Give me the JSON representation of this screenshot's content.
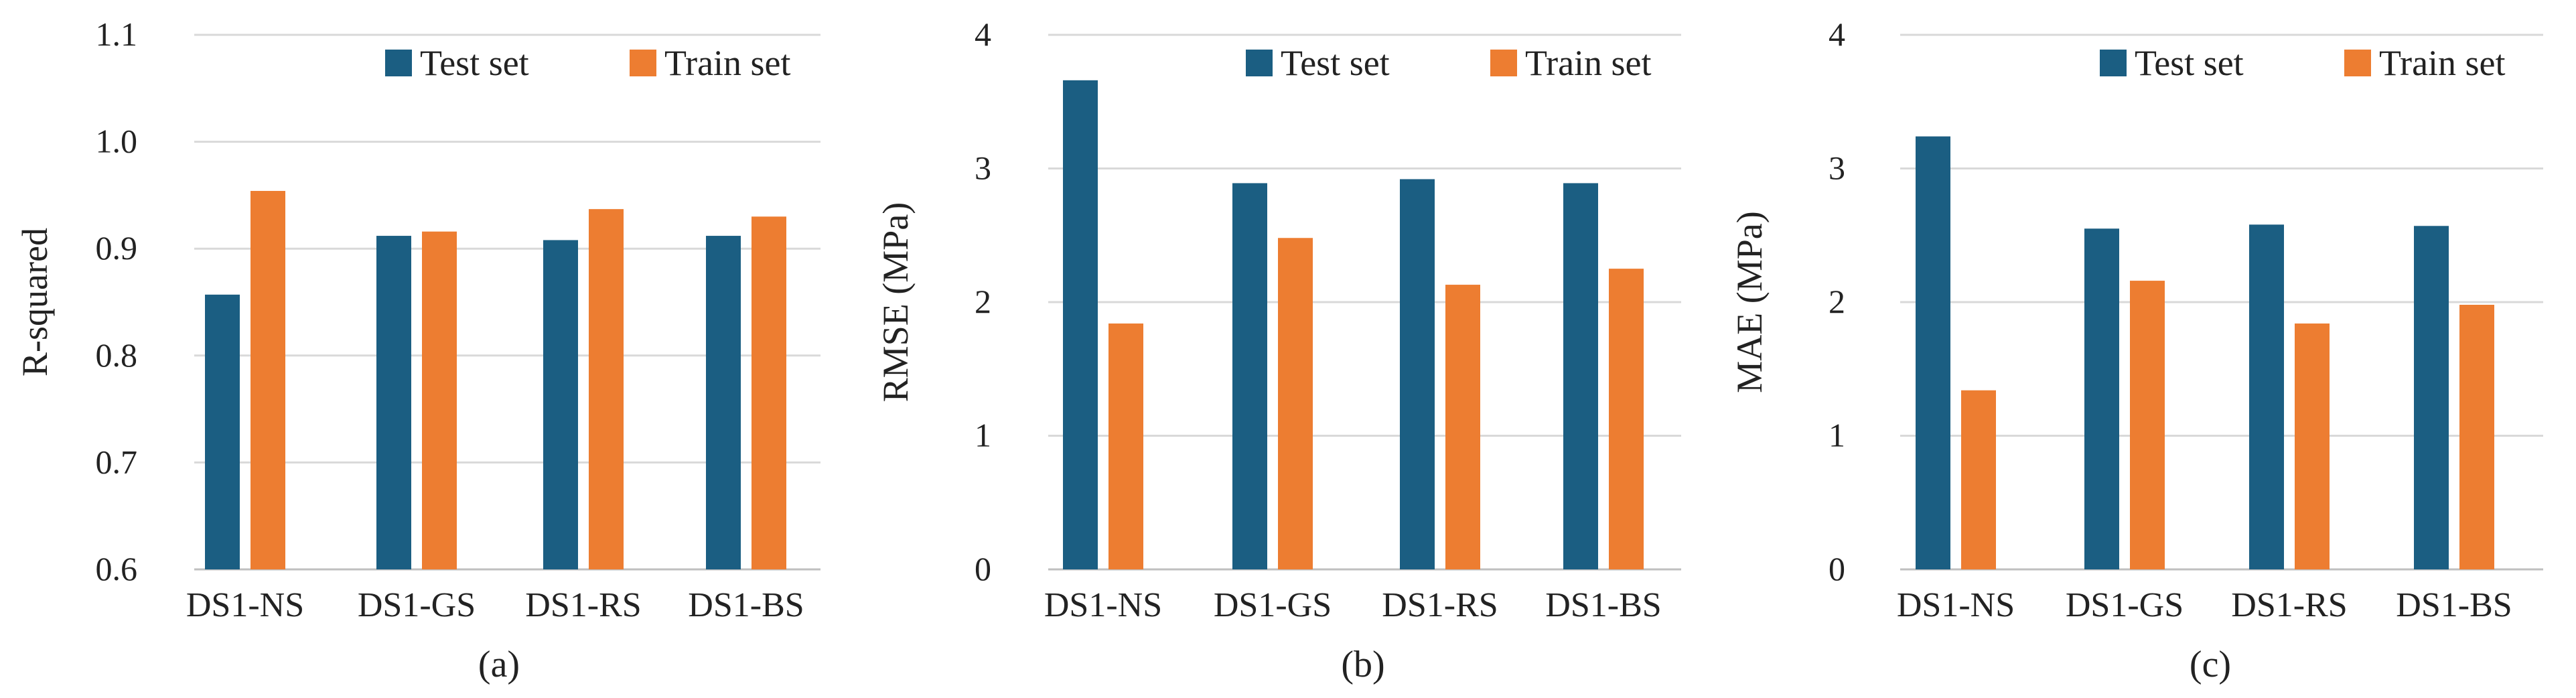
{
  "colors": {
    "test": "#1B5E82",
    "train": "#ED7D31",
    "grid": "#D9D9D9",
    "axis": "#BFBFBF",
    "text": "#222222"
  },
  "chart_data": [
    {
      "type": "bar",
      "panel_label": "(a)",
      "title": "",
      "xlabel": "",
      "ylabel": "R-squared",
      "ylim": [
        0.6,
        1.1
      ],
      "yticks": [
        "0.6",
        "0.7",
        "0.8",
        "0.9",
        "1.0",
        "1.1"
      ],
      "grid": true,
      "legend": "top-right",
      "categories": [
        "DS1-NS",
        "DS1-GS",
        "DS1-RS",
        "DS1-BS"
      ],
      "series": [
        {
          "name": "Test set",
          "values": [
            0.857,
            0.912,
            0.908,
            0.912
          ]
        },
        {
          "name": "Train set",
          "values": [
            0.954,
            0.916,
            0.937,
            0.93
          ]
        }
      ]
    },
    {
      "type": "bar",
      "panel_label": "(b)",
      "title": "",
      "xlabel": "",
      "ylabel": "RMSE (MPa)",
      "ylim": [
        0,
        4
      ],
      "yticks": [
        "0",
        "1",
        "2",
        "3",
        "4"
      ],
      "grid": true,
      "legend": "top-right",
      "categories": [
        "DS1-NS",
        "DS1-GS",
        "DS1-RS",
        "DS1-BS"
      ],
      "series": [
        {
          "name": "Test set",
          "values": [
            3.66,
            2.89,
            2.92,
            2.89
          ]
        },
        {
          "name": "Train set",
          "values": [
            1.84,
            2.48,
            2.13,
            2.25
          ]
        }
      ]
    },
    {
      "type": "bar",
      "panel_label": "(c)",
      "title": "",
      "xlabel": "",
      "ylabel": "MAE (MPa)",
      "ylim": [
        0,
        4
      ],
      "yticks": [
        "0",
        "1",
        "2",
        "3",
        "4"
      ],
      "grid": true,
      "legend": "top-right",
      "categories": [
        "DS1-NS",
        "DS1-GS",
        "DS1-RS",
        "DS1-BS"
      ],
      "series": [
        {
          "name": "Test set",
          "values": [
            3.24,
            2.55,
            2.58,
            2.57
          ]
        },
        {
          "name": "Train set",
          "values": [
            1.34,
            2.16,
            1.84,
            1.98
          ]
        }
      ]
    }
  ]
}
